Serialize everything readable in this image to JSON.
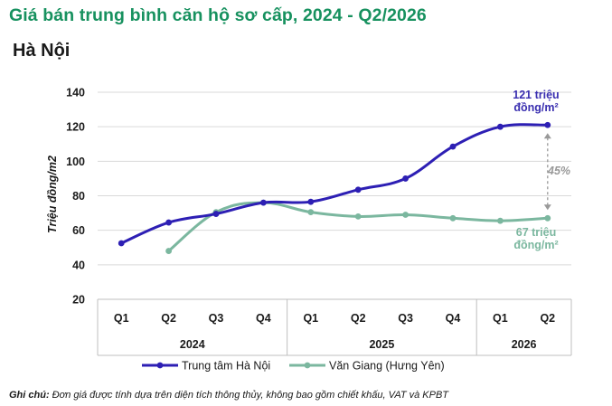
{
  "title": "Giá bán trung bình căn hộ sơ cấp, 2024 - Q2/2026",
  "subtitle": "Hà Nội",
  "note_label": "Ghi chú:",
  "note_text": " Đơn giá được tính dựa trên diện tích thông thủy, không bao gồm chiết khấu, VAT và KPBT",
  "annotations": {
    "blue_line1": "121 triệu",
    "blue_line2": "đồng/m²",
    "green_line1": "67 triệu",
    "green_line2": "đồng/m²",
    "diff": "45%"
  },
  "colors": {
    "title": "#17915f",
    "series1": "#2d1fb4",
    "series2": "#7bb79f",
    "grid": "#d9d9d9",
    "diff": "#999999"
  },
  "chart_data": {
    "type": "line",
    "ylabel": "Triệu đồng/m2",
    "ylim": [
      20,
      140
    ],
    "yticks": [
      20,
      40,
      60,
      80,
      100,
      120,
      140
    ],
    "categories": [
      "Q1",
      "Q2",
      "Q3",
      "Q4",
      "Q1",
      "Q2",
      "Q3",
      "Q4",
      "Q1",
      "Q2"
    ],
    "years": [
      {
        "label": "2024",
        "span": 4
      },
      {
        "label": "2025",
        "span": 4
      },
      {
        "label": "2026",
        "span": 2
      }
    ],
    "series": [
      {
        "name": "Trung tâm Hà Nội",
        "values": [
          52.5,
          64.5,
          69.5,
          76,
          76.5,
          83.5,
          90,
          108.5,
          120,
          121
        ]
      },
      {
        "name": "Văn Giang (Hưng Yên)",
        "values": [
          null,
          48,
          70.5,
          76,
          70.5,
          68,
          69,
          67,
          65.5,
          67
        ]
      }
    ],
    "legend_position": "bottom",
    "grid": true
  }
}
